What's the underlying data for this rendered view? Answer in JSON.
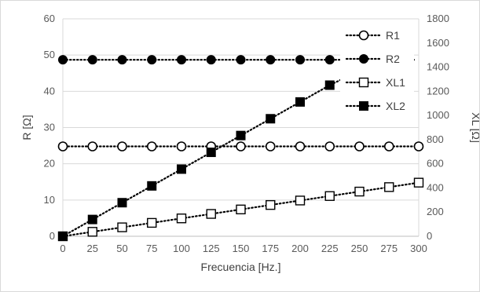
{
  "chart_data": {
    "type": "scatter",
    "xlabel": "Frecuencia [Hz.]",
    "ylabel_left": "R [Ω]",
    "ylabel_right": "XL [Ω]",
    "x_ticks": [
      "0",
      "25",
      "50",
      "75",
      "100",
      "125",
      "150",
      "175",
      "200",
      "225",
      "250",
      "275",
      "300"
    ],
    "y_left_ticks": [
      "0",
      "10",
      "20",
      "30",
      "40",
      "50",
      "60"
    ],
    "y_right_ticks": [
      "0",
      "200",
      "400",
      "600",
      "800",
      "1000",
      "1200",
      "1400",
      "1600",
      "1800"
    ],
    "xlim": [
      0,
      300
    ],
    "ylim_left": [
      0,
      60
    ],
    "ylim_right": [
      0,
      1800
    ],
    "grid": "horizontal",
    "legend_position": "top-right",
    "series": [
      {
        "name": "R1",
        "axis": "left",
        "marker": "open-circle",
        "line": "dotted",
        "x": [
          0,
          25,
          50,
          75,
          100,
          125,
          150,
          175,
          200,
          225,
          250,
          275,
          300
        ],
        "y": [
          24.8,
          24.8,
          24.8,
          24.8,
          24.8,
          24.8,
          24.8,
          24.8,
          24.8,
          24.8,
          24.8,
          24.8,
          24.8
        ]
      },
      {
        "name": "R2",
        "axis": "left",
        "marker": "filled-circle",
        "line": "dotted",
        "x": [
          0,
          25,
          50,
          75,
          100,
          125,
          150,
          175,
          200,
          225
        ],
        "y": [
          48.7,
          48.7,
          48.7,
          48.7,
          48.7,
          48.7,
          48.7,
          48.7,
          48.7,
          48.7
        ]
      },
      {
        "name": "XL1",
        "axis": "right",
        "marker": "open-square",
        "line": "dotted",
        "x": [
          0,
          25,
          50,
          75,
          100,
          125,
          150,
          175,
          200,
          225,
          250,
          275,
          300
        ],
        "y": [
          0,
          37,
          74,
          111,
          148,
          185,
          222,
          259,
          296,
          333,
          370,
          407,
          444
        ]
      },
      {
        "name": "XL2",
        "axis": "right",
        "marker": "filled-square",
        "line": "dotted",
        "x": [
          0,
          25,
          50,
          75,
          100,
          125,
          150,
          175,
          200,
          225
        ],
        "y": [
          0,
          139,
          278,
          417,
          556,
          695,
          834,
          973,
          1112,
          1251
        ],
        "trend_to_x": 250,
        "trend_to_y": 1370
      }
    ]
  }
}
